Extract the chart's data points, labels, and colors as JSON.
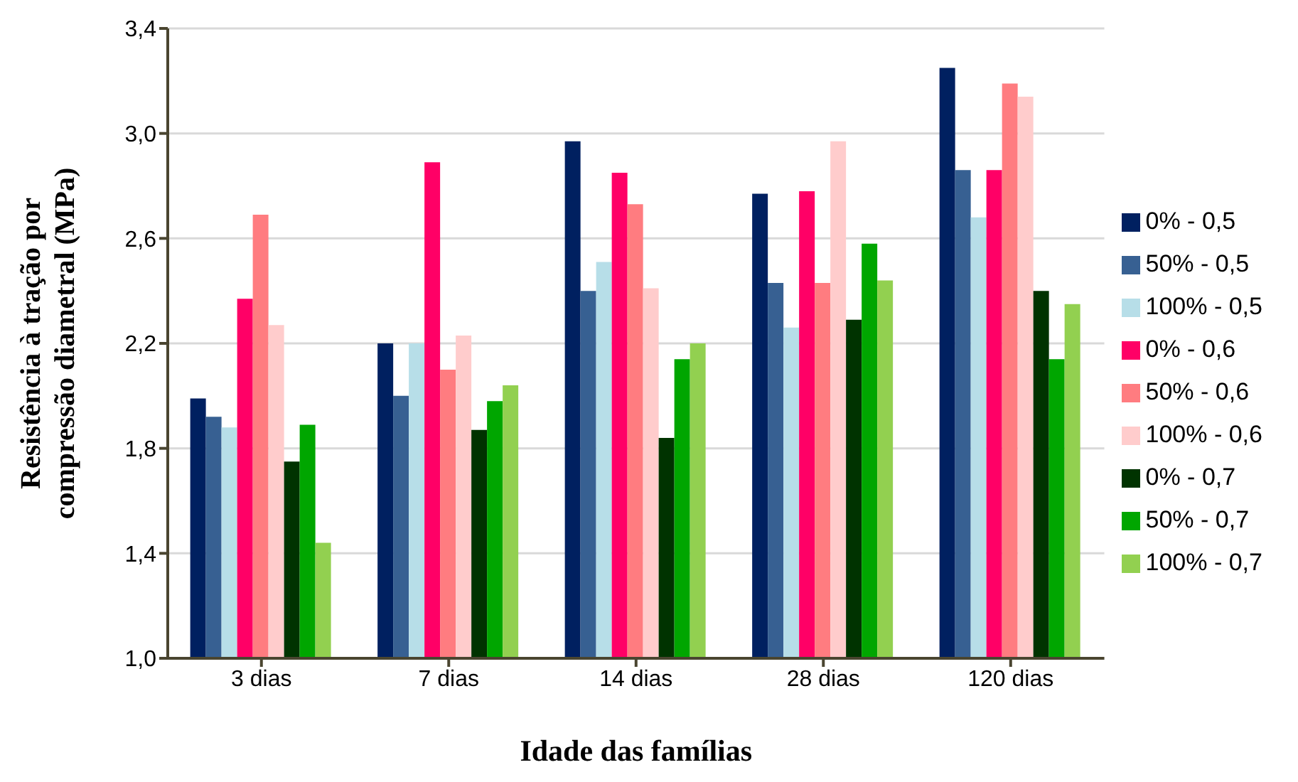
{
  "chart_data": {
    "type": "bar",
    "xlabel": "Idade das famílias",
    "ylabel": "Resistência à tração por compressão diametral (MPa)",
    "categories": [
      "3 dias",
      "7 dias",
      "14 dias",
      "28 dias",
      "120 dias"
    ],
    "series": [
      {
        "name": "0% - 0,5",
        "color": "#002060",
        "values": [
          1.99,
          2.2,
          2.97,
          2.77,
          3.25
        ]
      },
      {
        "name": "50% - 0,5",
        "color": "#376092",
        "values": [
          1.92,
          2.0,
          2.4,
          2.43,
          2.86
        ]
      },
      {
        "name": "100% - 0,5",
        "color": "#b7dee8",
        "values": [
          1.88,
          2.2,
          2.51,
          2.26,
          2.68
        ]
      },
      {
        "name": "0% - 0,6",
        "color": "#ff0066",
        "values": [
          2.37,
          2.89,
          2.85,
          2.78,
          2.86
        ]
      },
      {
        "name": "50% - 0,6",
        "color": "#ff7c80",
        "values": [
          2.69,
          2.1,
          2.73,
          2.43,
          3.19
        ]
      },
      {
        "name": "100% - 0,6",
        "color": "#ffcccc",
        "values": [
          2.27,
          2.23,
          2.41,
          2.97,
          3.14
        ]
      },
      {
        "name": "0% - 0,7",
        "color": "#003300",
        "values": [
          1.75,
          1.87,
          1.84,
          2.29,
          2.4
        ]
      },
      {
        "name": "50% - 0,7",
        "color": "#00a600",
        "values": [
          1.89,
          1.98,
          2.14,
          2.58,
          2.14
        ]
      },
      {
        "name": "100% - 0,7",
        "color": "#92d050",
        "values": [
          1.44,
          2.04,
          2.2,
          2.44,
          2.35
        ]
      }
    ],
    "ylim": [
      1.0,
      3.4
    ],
    "yticks": [
      {
        "value": 1.0,
        "label": "1,0"
      },
      {
        "value": 1.4,
        "label": "1,4"
      },
      {
        "value": 1.8,
        "label": "1,8"
      },
      {
        "value": 2.2,
        "label": "2,2"
      },
      {
        "value": 2.6,
        "label": "2,6"
      },
      {
        "value": 3.0,
        "label": "3,0"
      },
      {
        "value": 3.4,
        "label": "3,4"
      }
    ],
    "grid": "y",
    "legend": "right"
  }
}
